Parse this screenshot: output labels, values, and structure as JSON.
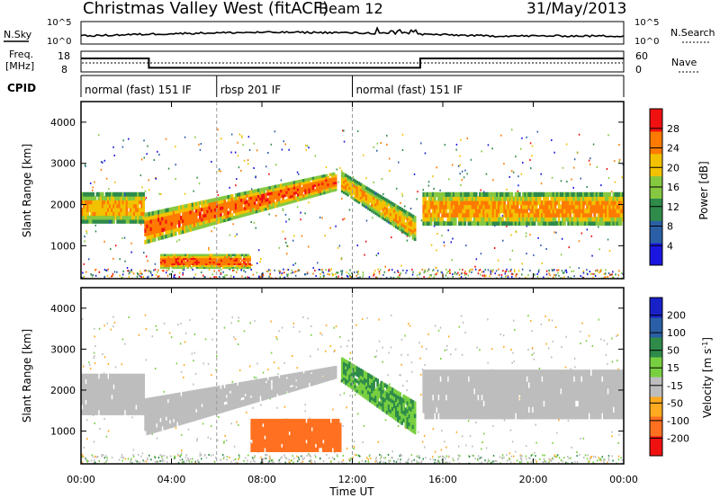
{
  "chart_data": [
    {
      "type": "heatmap",
      "title": "Christmas Valley West (fitACF)",
      "subtitle": "Beam 12",
      "date": "31/May/2013",
      "xlabel": "Time UT",
      "ylabel": "Slant Range [km]",
      "x_ticks": [
        "00:00",
        "04:00",
        "08:00",
        "12:00",
        "16:00",
        "20:00",
        "00:00"
      ],
      "x_range_hours": [
        0,
        24
      ],
      "y_ticks": [
        "1000",
        "2000",
        "3000",
        "4000"
      ],
      "ylim": [
        200,
        4500
      ],
      "colorbar": {
        "label": "Power [dB]",
        "ticks": [
          "4",
          "8",
          "12",
          "16",
          "20",
          "24",
          "28"
        ],
        "range": [
          0,
          32
        ],
        "colors": [
          "#1a16e0",
          "#2a5fa6",
          "#2e8b4a",
          "#86c840",
          "#f2c200",
          "#ff7a00",
          "#f01010"
        ]
      },
      "bands": [
        {
          "start": 0,
          "end": 2.8,
          "range_lo": 1550,
          "range_hi": 2300,
          "power": 22
        },
        {
          "start": 2.8,
          "end": 11.3,
          "range_lo_start": 1050,
          "range_lo_end": 2350,
          "range_hi_start": 1800,
          "range_hi_end": 2800,
          "power": 26
        },
        {
          "start": 11.5,
          "end": 14.8,
          "range_lo_start": 2300,
          "range_lo_end": 1100,
          "range_hi_start": 2800,
          "range_hi_end": 1700,
          "power": 22
        },
        {
          "start": 15.1,
          "end": 24,
          "range_lo": 1500,
          "range_hi": 2300,
          "power": 24
        },
        {
          "start": 3.5,
          "end": 7.5,
          "range_lo": 450,
          "range_hi": 800,
          "power": 26
        }
      ]
    },
    {
      "type": "heatmap",
      "xlabel": "Time UT",
      "ylabel": "Slant Range [km]",
      "x_ticks": [
        "00:00",
        "04:00",
        "08:00",
        "12:00",
        "16:00",
        "20:00",
        "00:00"
      ],
      "x_range_hours": [
        0,
        24
      ],
      "y_ticks": [
        "1000",
        "2000",
        "3000",
        "4000"
      ],
      "ylim": [
        200,
        4500
      ],
      "colorbar": {
        "label": "Velocity [m s",
        "label_superscript": "-1",
        "label_close": "]",
        "ticks": [
          "200",
          "100",
          "50",
          "15",
          "-15",
          "-50",
          "-100",
          "-200"
        ],
        "colors": [
          "#1820c8",
          "#2a5fa6",
          "#2e8b4a",
          "#78d040",
          "#bdbdbd",
          "#ffaa20",
          "#ff7020",
          "#f01010"
        ]
      },
      "bands": [
        {
          "start": 0,
          "end": 2.8,
          "range_lo": 1400,
          "range_hi": 2400,
          "velocity": 0
        },
        {
          "start": 2.8,
          "end": 11.3,
          "range_lo_start": 900,
          "range_lo_end": 2300,
          "range_hi_start": 1800,
          "range_hi_end": 2600,
          "velocity": 0
        },
        {
          "start": 11.5,
          "end": 14.8,
          "range_lo_start": 2200,
          "range_lo_end": 900,
          "range_hi_start": 2800,
          "range_hi_end": 1700,
          "velocity": 30
        },
        {
          "start": 15.1,
          "end": 24,
          "range_lo": 1300,
          "range_hi": 2500,
          "velocity": 0
        },
        {
          "start": 7.5,
          "end": 11.5,
          "range_lo": 500,
          "range_hi": 1300,
          "velocity": -60
        }
      ]
    },
    {
      "type": "line",
      "name": "noise",
      "left_label": "N.Sky",
      "right_label": "N.Search",
      "left_ticks": [
        "10^5",
        "10^0"
      ],
      "right_ticks": [
        "10^5",
        "10^0"
      ]
    },
    {
      "type": "line",
      "name": "frequency",
      "left_label_1": "Freq.",
      "left_label_2": "[MHz]",
      "right_label": "Nave",
      "left_ticks": [
        "18",
        "8"
      ],
      "right_ticks": [
        "60",
        "0"
      ],
      "freq_segments": [
        {
          "start": 0,
          "end": 3,
          "level": 0.65
        },
        {
          "start": 3,
          "end": 15,
          "level": 0.2
        },
        {
          "start": 15,
          "end": 24,
          "level": 0.65
        }
      ]
    },
    {
      "type": "table",
      "name": "cpid",
      "label": "CPID",
      "segments": [
        {
          "start": 0,
          "end": 6,
          "text": "normal (fast) 151 IF"
        },
        {
          "start": 6,
          "end": 12,
          "text": "rbsp 201 IF"
        },
        {
          "start": 12,
          "end": 24,
          "text": "normal (fast) 151 IF"
        }
      ]
    }
  ]
}
